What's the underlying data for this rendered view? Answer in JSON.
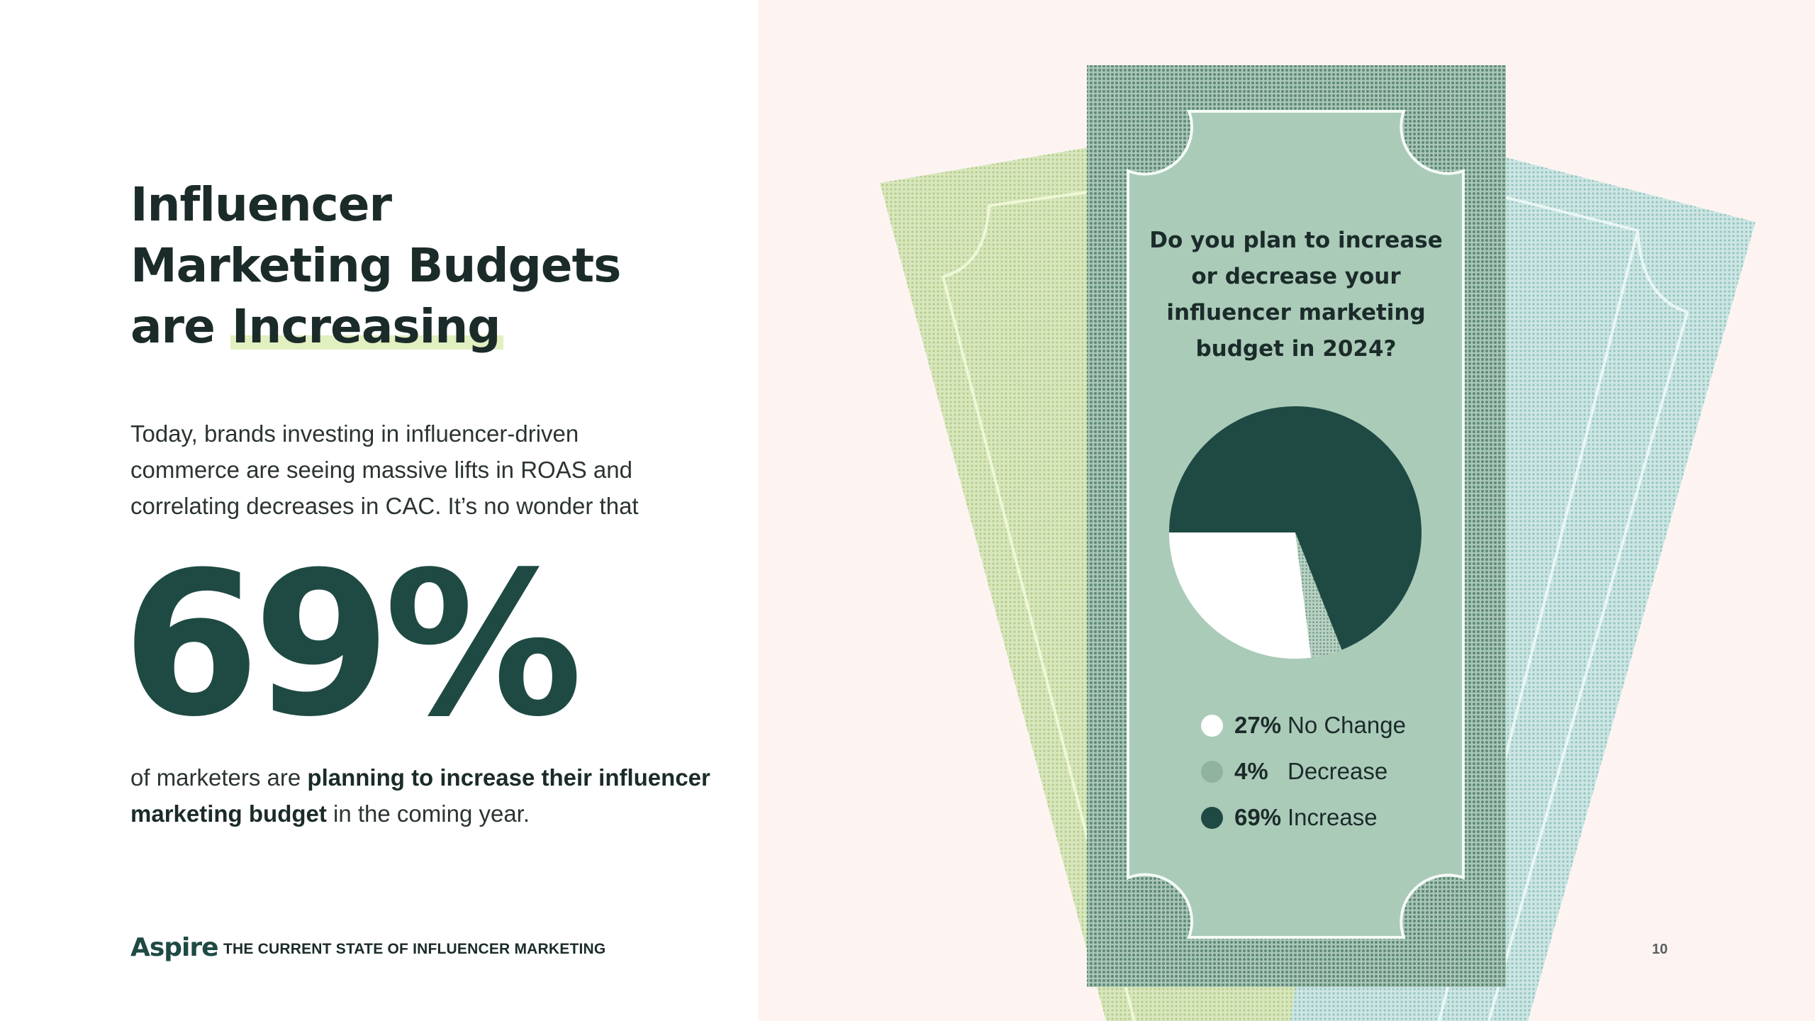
{
  "slide": {
    "title_lines": [
      "Influencer",
      "Marketing Budgets",
      "are"
    ],
    "title_highlight": "Increasing",
    "intro": "Today, brands investing in influencer-driven commerce are seeing massive lifts in ROAS and correlating decreases in CAC. It’s no wonder that",
    "big_stat": "69%",
    "outro_start": "of marketers are ",
    "outro_bold": "planning to increase their influencer marketing budget",
    "outro_end": " in the coming year."
  },
  "footer": {
    "logo": "Aspire",
    "report_title": "THE CURRENT STATE OF INFLUENCER MARKETING",
    "page_number": "10"
  },
  "colors": {
    "dark_green": "#1f4a44",
    "sage": "#abcbb9",
    "light_green_bill": "#cfdfaa",
    "light_blue_bill": "#b6dad8",
    "highlight": "#e2efc0",
    "pink_background": "#fdf4f2"
  },
  "chart_data": {
    "type": "pie",
    "title": "Do you plan to increase or decrease your influencer marketing budget in 2024?",
    "categories": [
      "No Change",
      "Decrease",
      "Increase"
    ],
    "values": [
      27,
      4,
      69
    ],
    "unit": "%",
    "slice_colors": [
      "#ffffff",
      "#8fb39f",
      "#1f4a44"
    ],
    "legend_placement": "bottom",
    "labels": [
      "27%",
      "4%",
      "69%"
    ]
  }
}
